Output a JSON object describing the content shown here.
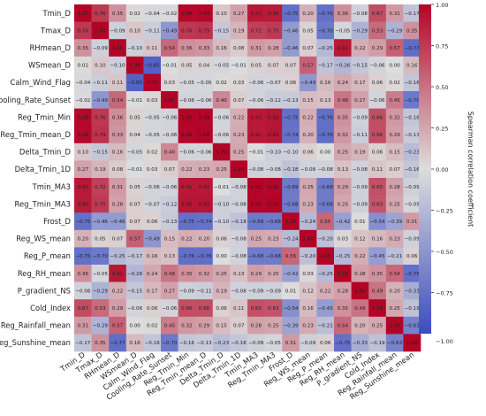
{
  "chart_data": {
    "type": "heatmap",
    "labels": [
      "Tmin_D",
      "Tmax_D",
      "RHmean_D",
      "WSmean_D",
      "Calm_Wind_Flag",
      "Cooling_Rate_Sunset",
      "Reg_Tmin_Min",
      "Reg_Tmin_mean_D",
      "Delta_Tmin_D",
      "Delta_Tmin_1D",
      "Tmin_MA3",
      "Reg_Tmin_MA3",
      "Frost_D",
      "Reg_WS_mean",
      "Reg_P_mean",
      "Reg_RH_mean",
      "P_gradient_NS",
      "Cold_Index",
      "Reg_Rainfall_mean",
      "Reg_Sunshine_mean"
    ],
    "matrix": [
      [
        1.0,
        0.76,
        0.35,
        0.02,
        -0.04,
        -0.02,
        0.98,
        0.98,
        0.1,
        0.27,
        0.91,
        0.9,
        -0.75,
        0.2,
        -0.75,
        0.36,
        -0.08,
        0.67,
        0.31,
        -0.17
      ],
      [
        0.76,
        1.0,
        -0.09,
        0.1,
        -0.11,
        -0.49,
        0.76,
        0.79,
        -0.15,
        0.19,
        0.72,
        0.75,
        -0.46,
        0.05,
        -0.7,
        -0.05,
        -0.29,
        0.53,
        -0.29,
        0.35
      ],
      [
        0.35,
        -0.09,
        1.0,
        -0.1,
        0.11,
        0.54,
        0.36,
        0.33,
        0.16,
        0.08,
        0.31,
        0.28,
        -0.46,
        0.07,
        -0.25,
        0.91,
        0.22,
        0.29,
        0.57,
        -0.77
      ],
      [
        0.02,
        0.1,
        -0.1,
        1.0,
        -0.85,
        -0.01,
        0.05,
        0.04,
        -0.05,
        -0.01,
        0.05,
        0.07,
        0.07,
        0.57,
        -0.17,
        -0.26,
        -0.15,
        -0.06,
        -0.0,
        0.16
      ],
      [
        -0.04,
        -0.11,
        0.11,
        -0.85,
        1.0,
        0.03,
        -0.05,
        -0.05,
        0.02,
        0.03,
        -0.06,
        -0.07,
        0.06,
        -0.49,
        0.16,
        0.24,
        0.17,
        0.06,
        0.02,
        -0.16
      ],
      [
        -0.02,
        -0.49,
        0.54,
        -0.01,
        0.03,
        1.0,
        -0.06,
        -0.06,
        0.4,
        0.07,
        -0.06,
        -0.12,
        -0.13,
        0.15,
        0.13,
        0.48,
        0.27,
        -0.06,
        0.45,
        -0.7
      ],
      [
        0.98,
        0.76,
        0.36,
        0.05,
        -0.05,
        -0.06,
        1.0,
        0.99,
        -0.06,
        0.22,
        0.91,
        0.92,
        -0.75,
        0.22,
        -0.76,
        0.35,
        -0.09,
        0.66,
        0.32,
        -0.16
      ],
      [
        0.98,
        0.79,
        0.33,
        0.04,
        -0.05,
        -0.06,
        0.99,
        1.0,
        -0.06,
        0.23,
        0.91,
        0.92,
        -0.74,
        0.2,
        -0.76,
        0.32,
        -0.11,
        0.66,
        0.29,
        -0.13
      ],
      [
        0.1,
        -0.15,
        0.16,
        -0.05,
        0.02,
        0.4,
        -0.06,
        -0.06,
        1.0,
        0.25,
        -0.01,
        -0.1,
        -0.1,
        0.06,
        0.0,
        0.25,
        0.19,
        0.06,
        0.15,
        -0.23
      ],
      [
        0.27,
        0.19,
        0.08,
        -0.01,
        0.03,
        0.07,
        0.22,
        0.23,
        0.25,
        1.0,
        -0.08,
        -0.08,
        -0.18,
        -0.08,
        -0.08,
        0.13,
        -0.08,
        0.11,
        0.07,
        -0.16
      ],
      [
        0.91,
        0.72,
        0.31,
        0.05,
        -0.06,
        -0.06,
        0.91,
        0.91,
        -0.01,
        -0.08,
        1.0,
        0.99,
        -0.69,
        0.25,
        -0.68,
        0.29,
        -0.09,
        0.65,
        0.28,
        -0.09
      ],
      [
        0.9,
        0.75,
        0.28,
        0.07,
        -0.07,
        -0.12,
        0.92,
        0.92,
        -0.1,
        -0.08,
        0.99,
        1.0,
        -0.68,
        0.23,
        -0.68,
        0.25,
        -0.09,
        0.63,
        0.25,
        -0.05
      ],
      [
        -0.75,
        -0.46,
        -0.46,
        0.07,
        0.06,
        -0.13,
        -0.75,
        -0.74,
        -0.1,
        -0.18,
        -0.69,
        -0.68,
        1.0,
        -0.24,
        0.55,
        -0.42,
        0.01,
        -0.54,
        -0.39,
        0.31
      ],
      [
        0.2,
        0.05,
        0.07,
        0.57,
        -0.49,
        0.15,
        0.22,
        0.2,
        0.06,
        -0.08,
        0.25,
        0.23,
        -0.24,
        1.0,
        -0.2,
        0.03,
        0.12,
        0.16,
        0.23,
        -0.09
      ],
      [
        -0.75,
        -0.7,
        -0.25,
        -0.17,
        0.16,
        0.13,
        -0.76,
        -0.76,
        0.0,
        -0.08,
        -0.68,
        -0.68,
        0.55,
        -0.2,
        1.0,
        -0.25,
        0.22,
        -0.45,
        -0.21,
        0.06
      ],
      [
        0.36,
        -0.05,
        0.91,
        -0.26,
        0.24,
        0.48,
        0.35,
        0.32,
        0.25,
        0.13,
        0.29,
        0.25,
        -0.42,
        0.03,
        -0.25,
        1.0,
        0.28,
        0.35,
        0.54,
        -0.75
      ],
      [
        -0.08,
        -0.29,
        0.22,
        -0.15,
        0.17,
        0.27,
        -0.09,
        -0.11,
        0.19,
        -0.08,
        -0.09,
        -0.09,
        0.01,
        0.12,
        0.22,
        0.28,
        1.0,
        0.49,
        0.2,
        -0.33
      ],
      [
        0.67,
        0.53,
        0.29,
        -0.06,
        0.06,
        -0.06,
        0.66,
        0.66,
        0.06,
        0.11,
        0.65,
        0.63,
        -0.54,
        0.16,
        -0.45,
        0.35,
        0.49,
        1.0,
        0.25,
        -0.19
      ],
      [
        0.31,
        -0.29,
        0.57,
        -0.0,
        0.02,
        0.45,
        0.32,
        0.29,
        0.15,
        0.07,
        0.28,
        0.25,
        -0.39,
        0.23,
        -0.21,
        0.54,
        0.2,
        0.25,
        1.0,
        -0.63
      ],
      [
        -0.17,
        0.35,
        -0.77,
        0.16,
        -0.16,
        -0.7,
        -0.16,
        -0.13,
        -0.23,
        -0.16,
        -0.09,
        -0.05,
        0.31,
        -0.09,
        0.06,
        -0.75,
        -0.33,
        -0.19,
        -0.63,
        1.0
      ]
    ],
    "colorbar": {
      "label": "Spearman correlation coefficient",
      "ticks": [
        1.0,
        0.75,
        0.5,
        0.25,
        0.0,
        -0.25,
        -0.5,
        -0.75,
        -1.0
      ],
      "tick_labels": [
        "1.00",
        "0.75",
        "0.50",
        "0.25",
        "0.00",
        "−0.25",
        "−0.50",
        "−0.75",
        "−1.00"
      ],
      "range": [
        -1,
        1
      ],
      "colormap": "coolwarm",
      "colors": {
        "negative": "#3b4cc0",
        "neutral": "#dddddd",
        "positive": "#b40426"
      }
    }
  }
}
